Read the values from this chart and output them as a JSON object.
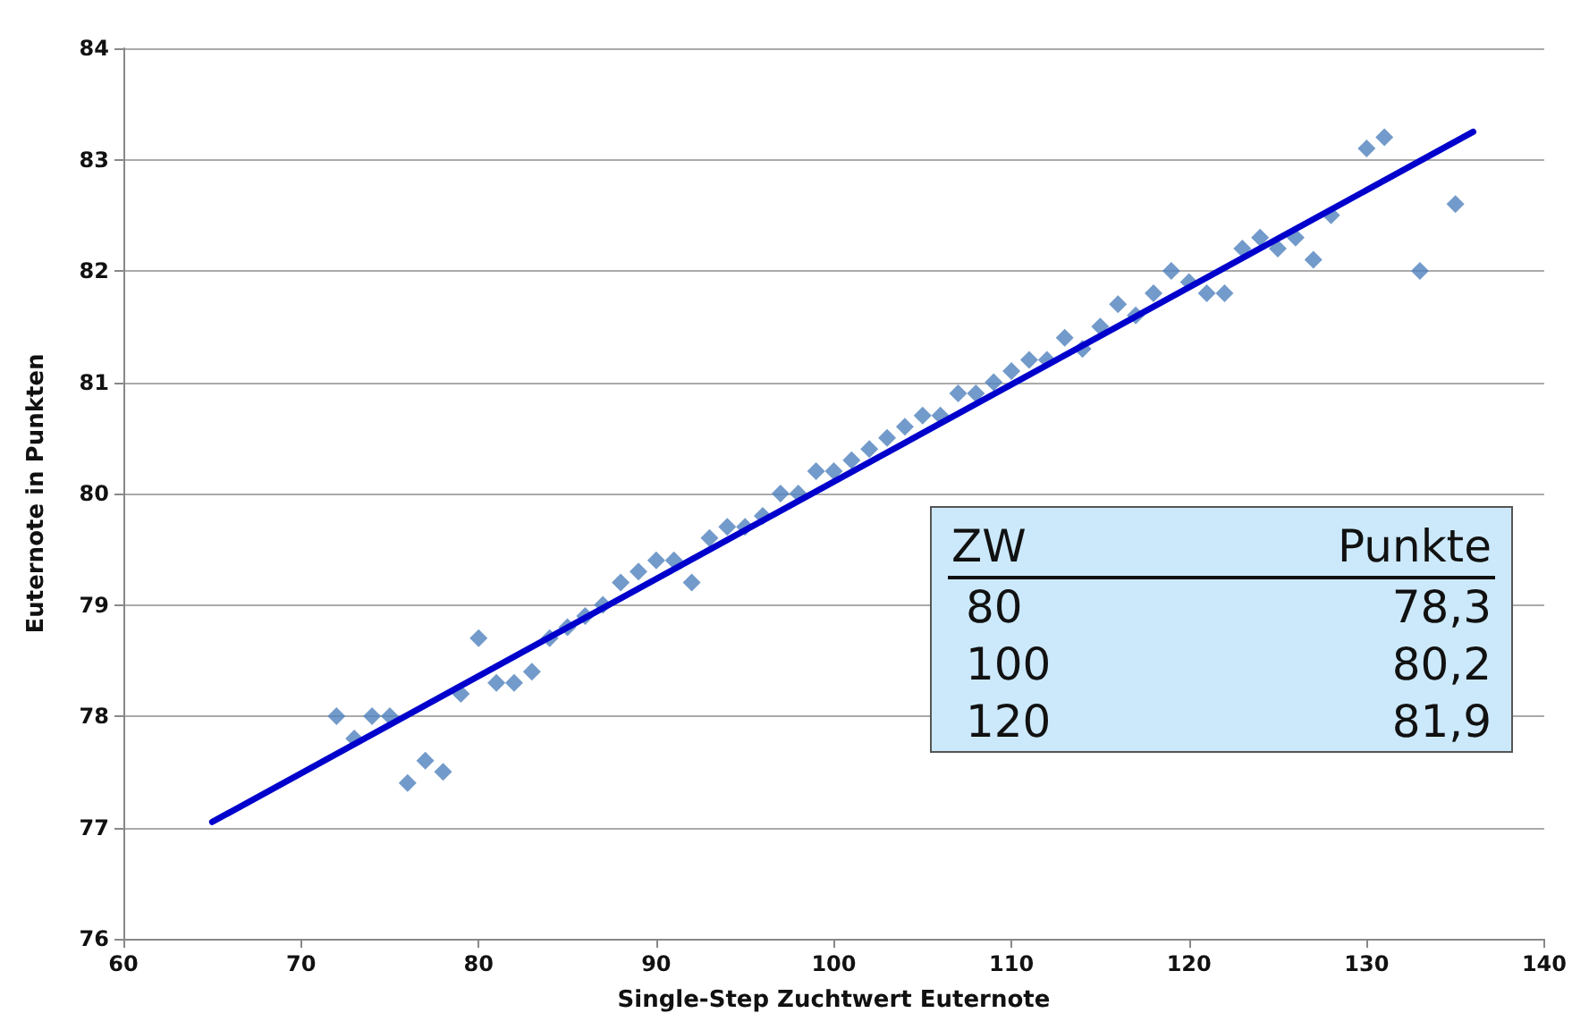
{
  "chart_data": {
    "type": "scatter",
    "xlabel": "Single-Step Zuchtwert Euternote",
    "ylabel": "Euternote in Punkten",
    "xlim": [
      60,
      140
    ],
    "xticks": [
      60,
      70,
      80,
      90,
      100,
      110,
      120,
      130,
      140
    ],
    "ylim": [
      76,
      84
    ],
    "yticks": [
      76,
      77,
      78,
      79,
      80,
      81,
      82,
      83,
      84
    ],
    "grid": "y",
    "series": [
      {
        "color": "#4f81bd",
        "marker": "diamond",
        "x": [
          72,
          73,
          74,
          75,
          76,
          77,
          78,
          79,
          80,
          81,
          82,
          83,
          84,
          85,
          86,
          87,
          88,
          89,
          90,
          91,
          92,
          93,
          94,
          95,
          96,
          97,
          98,
          99,
          100,
          101,
          102,
          103,
          104,
          105,
          106,
          107,
          108,
          109,
          110,
          111,
          112,
          113,
          114,
          115,
          116,
          117,
          118,
          119,
          120,
          121,
          122,
          123,
          124,
          125,
          126,
          127,
          128,
          130,
          131,
          133,
          135
        ],
        "values": [
          78.0,
          77.8,
          78.0,
          78.0,
          77.4,
          77.6,
          77.5,
          78.2,
          78.7,
          78.3,
          78.3,
          78.4,
          78.7,
          78.8,
          78.9,
          79.0,
          79.2,
          79.3,
          79.4,
          79.4,
          79.2,
          79.6,
          79.7,
          79.7,
          79.8,
          80.0,
          80.0,
          80.2,
          80.2,
          80.3,
          80.4,
          80.5,
          80.6,
          80.7,
          80.7,
          80.9,
          80.9,
          81.0,
          81.1,
          81.2,
          81.2,
          81.4,
          81.3,
          81.5,
          81.7,
          81.6,
          81.8,
          82.0,
          81.9,
          81.8,
          81.8,
          82.2,
          82.3,
          82.2,
          82.3,
          82.1,
          82.5,
          83.1,
          83.2,
          82.0,
          82.6
        ]
      },
      {
        "type": "line",
        "color": "#0000cc",
        "marker": "none",
        "line_style": "solid",
        "x": [
          65,
          136
        ],
        "values": [
          77.05,
          83.25
        ]
      }
    ],
    "annotations": [
      "ZW",
      "Punkte",
      "80",
      "78,3",
      "100",
      "80,2",
      "120",
      "81,9"
    ]
  }
}
